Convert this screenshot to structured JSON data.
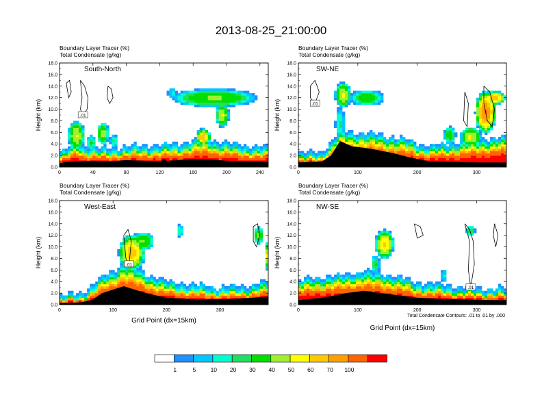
{
  "title": "2013-08-25_21:00:00",
  "field_labels": {
    "tracer": "Boundary Layer Tracer",
    "tracer_units": "(%)",
    "condensate": "Total Condensate",
    "condensate_units": "(g/kg)"
  },
  "contour_note": "Total Condensate Contours: .01 to .01 by .000",
  "chart_data": [
    {
      "type": "heatmap",
      "panel": "South-North",
      "ylabel": "Height (km)",
      "xlabel": "",
      "xlim": [
        0,
        250
      ],
      "ylim": [
        0,
        18
      ],
      "xticks": [
        0,
        40,
        80,
        120,
        160,
        200,
        240
      ],
      "yticks": [
        "0.0",
        "2.0",
        "4.0",
        "6.0",
        "8.0",
        "10.0",
        "12.0",
        "14.0",
        "16.0",
        "18.0"
      ],
      "contour_label": ".01",
      "marker": {
        "x": 125,
        "y": 1.0
      },
      "terrain": [
        [
          0,
          0.7
        ],
        [
          10,
          0.9
        ],
        [
          20,
          1.0
        ],
        [
          40,
          1.1
        ],
        [
          60,
          1.0
        ],
        [
          80,
          1.2
        ],
        [
          100,
          1.1
        ],
        [
          120,
          1.0
        ],
        [
          140,
          1.2
        ],
        [
          160,
          1.4
        ],
        [
          180,
          1.3
        ],
        [
          200,
          1.1
        ],
        [
          220,
          1.0
        ],
        [
          250,
          0.9
        ]
      ],
      "tracer_top": [
        [
          0,
          1.6
        ],
        [
          10,
          2.4
        ],
        [
          20,
          3.6
        ],
        [
          30,
          2.8
        ],
        [
          40,
          2.6
        ],
        [
          60,
          2.4
        ],
        [
          80,
          2.8
        ],
        [
          100,
          2.9
        ],
        [
          120,
          3.0
        ],
        [
          140,
          3.2
        ],
        [
          160,
          3.8
        ],
        [
          175,
          4.2
        ],
        [
          190,
          3.6
        ],
        [
          210,
          3.2
        ],
        [
          230,
          2.8
        ],
        [
          250,
          2.6
        ]
      ],
      "blobs": [
        {
          "x": 20,
          "y": 5.5,
          "rx": 10,
          "ry": 2.6,
          "peak": 40
        },
        {
          "x": 52,
          "y": 5.8,
          "rx": 7,
          "ry": 2.0,
          "peak": 35
        },
        {
          "x": 38,
          "y": 4.2,
          "rx": 6,
          "ry": 1.4,
          "peak": 20
        },
        {
          "x": 65,
          "y": 4.5,
          "rx": 5,
          "ry": 1.2,
          "peak": 15
        },
        {
          "x": 185,
          "y": 12.0,
          "rx": 52,
          "ry": 1.6,
          "peak": 30
        },
        {
          "x": 195,
          "y": 9.0,
          "rx": 8,
          "ry": 2.2,
          "peak": 40
        },
        {
          "x": 172,
          "y": 5.2,
          "rx": 9,
          "ry": 1.5,
          "peak": 60
        },
        {
          "x": 135,
          "y": 12.8,
          "rx": 6,
          "ry": 1.0,
          "peak": 10
        }
      ],
      "contours": [
        {
          "points": [
            [
              25,
              15
            ],
            [
              30,
              14
            ],
            [
              34,
              12
            ],
            [
              33,
              10
            ],
            [
              28,
              9
            ],
            [
              25,
              10
            ],
            [
              27,
              12
            ],
            [
              25,
              15
            ]
          ]
        },
        {
          "points": [
            [
              58,
              14
            ],
            [
              62,
              13.5
            ],
            [
              64,
              12
            ],
            [
              60,
              11
            ],
            [
              57,
              12
            ],
            [
              58,
              14
            ]
          ]
        },
        {
          "points": [
            [
              8,
              14.5
            ],
            [
              12,
              15
            ],
            [
              14,
              13
            ],
            [
              11,
              12
            ],
            [
              8,
              14.5
            ]
          ]
        }
      ]
    },
    {
      "type": "heatmap",
      "panel": "SW-NE",
      "ylabel": "Height (km)",
      "xlabel": "",
      "xlim": [
        0,
        350
      ],
      "ylim": [
        0,
        18
      ],
      "xticks": [
        0,
        100,
        200,
        300
      ],
      "yticks": [
        "0.0",
        "2.0",
        "4.0",
        "6.0",
        "8.0",
        "10.0",
        "12.0",
        "14.0",
        "16.0",
        "18.0"
      ],
      "contour_label": ".01",
      "marker": {
        "x": 178,
        "y": 1.0
      },
      "terrain": [
        [
          0,
          0.8
        ],
        [
          40,
          1.0
        ],
        [
          55,
          2.0
        ],
        [
          70,
          4.5
        ],
        [
          90,
          3.6
        ],
        [
          120,
          3.2
        ],
        [
          160,
          2.4
        ],
        [
          190,
          1.6
        ],
        [
          220,
          1.0
        ],
        [
          260,
          0.9
        ],
        [
          300,
          0.8
        ],
        [
          350,
          0.8
        ]
      ],
      "tracer_top": [
        [
          0,
          1.6
        ],
        [
          40,
          1.8
        ],
        [
          55,
          3.4
        ],
        [
          70,
          5.5
        ],
        [
          100,
          5.2
        ],
        [
          140,
          4.8
        ],
        [
          180,
          4.0
        ],
        [
          220,
          2.8
        ],
        [
          260,
          3.4
        ],
        [
          300,
          4.0
        ],
        [
          330,
          4.2
        ],
        [
          350,
          4.4
        ]
      ],
      "blobs": [
        {
          "x": 75,
          "y": 12.5,
          "rx": 14,
          "ry": 2.2,
          "peak": 40
        },
        {
          "x": 115,
          "y": 12.0,
          "rx": 30,
          "ry": 1.4,
          "peak": 25
        },
        {
          "x": 70,
          "y": 7.5,
          "rx": 8,
          "ry": 3.0,
          "peak": 15
        },
        {
          "x": 315,
          "y": 9.5,
          "rx": 18,
          "ry": 3.8,
          "peak": 70
        },
        {
          "x": 330,
          "y": 12.0,
          "rx": 20,
          "ry": 1.2,
          "peak": 55
        },
        {
          "x": 290,
          "y": 5.2,
          "rx": 18,
          "ry": 1.8,
          "peak": 40
        },
        {
          "x": 255,
          "y": 5.5,
          "rx": 10,
          "ry": 1.6,
          "peak": 25
        }
      ],
      "contours": [
        {
          "points": [
            [
              20,
              14
            ],
            [
              28,
              15
            ],
            [
              35,
              13
            ],
            [
              28,
              11
            ],
            [
              20,
              12
            ],
            [
              20,
              14
            ]
          ]
        },
        {
          "points": [
            [
              312,
              14
            ],
            [
              322,
              13
            ],
            [
              330,
              10
            ],
            [
              326,
              7
            ],
            [
              318,
              8
            ],
            [
              312,
              11
            ],
            [
              312,
              14
            ]
          ]
        },
        {
          "points": [
            [
              280,
              13
            ],
            [
              286,
              11
            ],
            [
              284,
              7
            ],
            [
              278,
              8
            ],
            [
              280,
              13
            ]
          ]
        }
      ]
    },
    {
      "type": "heatmap",
      "panel": "West-East",
      "ylabel": "Height (km)",
      "xlabel": "Grid Point (dx=15km)",
      "xlim": [
        0,
        390
      ],
      "ylim": [
        0,
        18
      ],
      "xticks": [
        0,
        100,
        200,
        300
      ],
      "yticks": [
        "0.0",
        "2.0",
        "4.0",
        "6.0",
        "8.0",
        "10.0",
        "12.0",
        "14.0",
        "16.0",
        "18.0"
      ],
      "contour_label": ".01",
      "marker": {
        "x": 193,
        "y": 1.0
      },
      "terrain": [
        [
          0,
          0.3
        ],
        [
          40,
          0.4
        ],
        [
          60,
          0.8
        ],
        [
          80,
          2.0
        ],
        [
          100,
          2.6
        ],
        [
          120,
          3.2
        ],
        [
          140,
          2.6
        ],
        [
          170,
          1.8
        ],
        [
          200,
          1.2
        ],
        [
          260,
          0.9
        ],
        [
          320,
          1.0
        ],
        [
          360,
          1.2
        ],
        [
          390,
          1.4
        ]
      ],
      "tracer_top": [
        [
          0,
          0.8
        ],
        [
          40,
          1.2
        ],
        [
          60,
          2.4
        ],
        [
          80,
          4.0
        ],
        [
          100,
          5.0
        ],
        [
          120,
          6.5
        ],
        [
          140,
          5.6
        ],
        [
          170,
          4.2
        ],
        [
          200,
          3.2
        ],
        [
          250,
          2.6
        ],
        [
          300,
          2.2
        ],
        [
          340,
          2.4
        ],
        [
          370,
          2.8
        ],
        [
          390,
          3.2
        ]
      ],
      "blobs": [
        {
          "x": 135,
          "y": 9.0,
          "rx": 25,
          "ry": 3.2,
          "peak": 55
        },
        {
          "x": 155,
          "y": 11.0,
          "rx": 22,
          "ry": 1.6,
          "peak": 30
        },
        {
          "x": 225,
          "y": 12.8,
          "rx": 6,
          "ry": 1.2,
          "peak": 15
        },
        {
          "x": 372,
          "y": 12.0,
          "rx": 10,
          "ry": 1.6,
          "peak": 30
        },
        {
          "x": 388,
          "y": 8.5,
          "rx": 5,
          "ry": 2.5,
          "peak": 40
        }
      ],
      "contours": [
        {
          "points": [
            [
              120,
              12
            ],
            [
              128,
              13
            ],
            [
              134,
              11
            ],
            [
              130,
              7
            ],
            [
              124,
              8
            ],
            [
              120,
              12
            ]
          ]
        },
        {
          "points": [
            [
              362,
              13.5
            ],
            [
              370,
              14
            ],
            [
              374,
              12
            ],
            [
              368,
              10
            ],
            [
              362,
              11
            ],
            [
              362,
              13.5
            ]
          ]
        }
      ]
    },
    {
      "type": "heatmap",
      "panel": "NW-SE",
      "ylabel": "Height (km)",
      "xlabel": "Grid Point (dx=15km)",
      "xlim": [
        0,
        350
      ],
      "ylim": [
        0,
        18
      ],
      "xticks": [
        0,
        100,
        200,
        300
      ],
      "yticks": [
        "0.0",
        "2.0",
        "4.0",
        "6.0",
        "8.0",
        "10.0",
        "12.0",
        "14.0",
        "16.0",
        "18.0"
      ],
      "contour_label": ".01",
      "marker": {
        "x": 178,
        "y": 1.0
      },
      "terrain": [
        [
          0,
          0.8
        ],
        [
          40,
          1.2
        ],
        [
          80,
          2.0
        ],
        [
          110,
          2.4
        ],
        [
          140,
          2.0
        ],
        [
          170,
          1.6
        ],
        [
          200,
          1.2
        ],
        [
          240,
          1.0
        ],
        [
          280,
          0.9
        ],
        [
          320,
          0.8
        ],
        [
          350,
          0.8
        ]
      ],
      "tracer_top": [
        [
          0,
          3.4
        ],
        [
          40,
          4.0
        ],
        [
          80,
          4.4
        ],
        [
          110,
          5.0
        ],
        [
          140,
          4.6
        ],
        [
          170,
          4.0
        ],
        [
          200,
          3.0
        ],
        [
          240,
          2.6
        ],
        [
          280,
          2.2
        ],
        [
          320,
          2.0
        ],
        [
          350,
          2.0
        ]
      ],
      "blobs": [
        {
          "x": 145,
          "y": 10.5,
          "rx": 16,
          "ry": 2.6,
          "peak": 50
        },
        {
          "x": 130,
          "y": 7.0,
          "rx": 7,
          "ry": 1.6,
          "peak": 20
        },
        {
          "x": 290,
          "y": 12.8,
          "rx": 8,
          "ry": 1.0,
          "peak": 20
        },
        {
          "x": 245,
          "y": 5.0,
          "rx": 5,
          "ry": 1.2,
          "peak": 10
        }
      ],
      "contours": [
        {
          "points": [
            [
              280,
              14
            ],
            [
              288,
              13
            ],
            [
              294,
              11
            ],
            [
              296,
              7
            ],
            [
              290,
              3
            ],
            [
              286,
              6
            ],
            [
              288,
              11
            ],
            [
              280,
              14
            ]
          ]
        },
        {
          "points": [
            [
              195,
              14
            ],
            [
              205,
              13.5
            ],
            [
              210,
              12
            ],
            [
              200,
              11.5
            ],
            [
              195,
              14
            ]
          ]
        },
        {
          "points": [
            [
              330,
              14
            ],
            [
              336,
              12
            ],
            [
              332,
              10
            ],
            [
              328,
              12
            ],
            [
              330,
              14
            ]
          ]
        }
      ]
    }
  ],
  "colorbar": {
    "colors": [
      "#ffffff",
      "#1e90ff",
      "#00c8ff",
      "#00ffd0",
      "#20e060",
      "#00e000",
      "#a0f030",
      "#ffff00",
      "#ffc800",
      "#ffa000",
      "#ff6400",
      "#ff0000"
    ],
    "labels": [
      "1",
      "5",
      "10",
      "20",
      "30",
      "40",
      "50",
      "60",
      "70",
      "100"
    ]
  }
}
